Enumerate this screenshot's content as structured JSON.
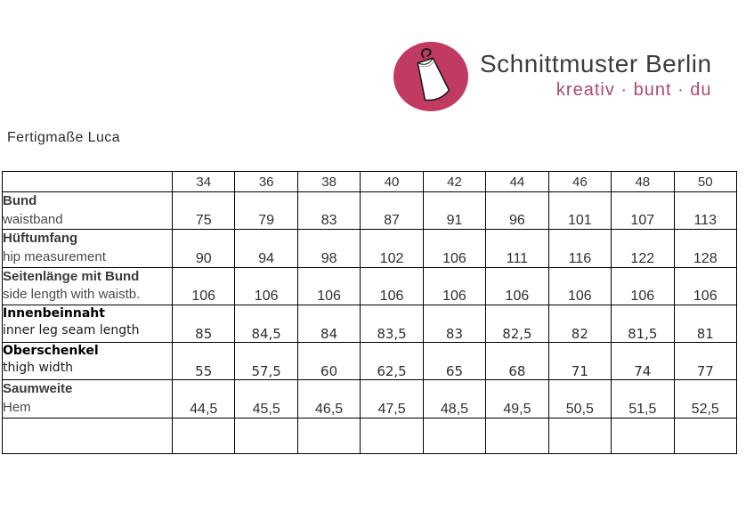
{
  "logo": {
    "brand": "Schnittmuster Berlin",
    "tagline": "kreativ · bunt · du",
    "icon": "dress-on-hanger-icon"
  },
  "colors": {
    "logo_circle": "#c13a62",
    "brand_text": "#3d3d3d",
    "tagline_text": "#ad4a6b",
    "table_border": "#000000",
    "body_text": "#363636"
  },
  "page": {
    "title": "Fertigmaße Luca"
  },
  "table": {
    "size_columns": [
      "34",
      "36",
      "38",
      "40",
      "42",
      "44",
      "46",
      "48",
      "50"
    ],
    "rows": [
      {
        "label_de": "Bund",
        "label_en": "waistband",
        "values": [
          "75",
          "79",
          "83",
          "87",
          "91",
          "96",
          "101",
          "107",
          "113"
        ],
        "emphasis": false
      },
      {
        "label_de": "Hüftumfang",
        "label_en": "hip measurement",
        "values": [
          "90",
          "94",
          "98",
          "102",
          "106",
          "111",
          "116",
          "122",
          "128"
        ],
        "emphasis": false
      },
      {
        "label_de": "Seitenlänge mit Bund",
        "label_en": "side length with waistb.",
        "values": [
          "106",
          "106",
          "106",
          "106",
          "106",
          "106",
          "106",
          "106",
          "106"
        ],
        "emphasis": false
      },
      {
        "label_de": "Innenbeinnaht",
        "label_en": "inner leg seam length",
        "values": [
          "85",
          "84,5",
          "84",
          "83,5",
          "83",
          "82,5",
          "82",
          "81,5",
          "81"
        ],
        "emphasis": true
      },
      {
        "label_de": "Oberschenkel",
        "label_en": "thigh width",
        "values": [
          "55",
          "57,5",
          "60",
          "62,5",
          "65",
          "68",
          "71",
          "74",
          "77"
        ],
        "emphasis": true
      },
      {
        "label_de": "Saumweite",
        "label_en": "Hem",
        "values": [
          "44,5",
          "45,5",
          "46,5",
          "47,5",
          "48,5",
          "49,5",
          "50,5",
          "51,5",
          "52,5"
        ],
        "emphasis": false
      }
    ],
    "trailing_empty_row": true
  }
}
